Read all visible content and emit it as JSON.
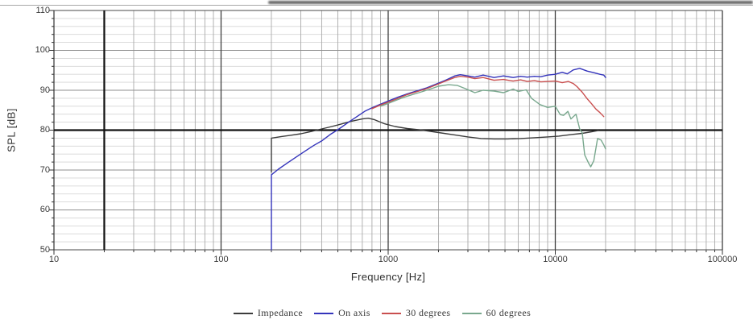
{
  "chart_data": {
    "type": "line",
    "title": "",
    "xlabel": "Frequency [Hz]",
    "ylabel": "SPL [dB]",
    "x_scale": "log",
    "xlim": [
      10,
      100000
    ],
    "ylim": [
      50,
      110
    ],
    "x_ticks": [
      10,
      100,
      1000,
      10000,
      100000
    ],
    "x_tick_labels": [
      "10",
      "100",
      "1000",
      "10000",
      "100000"
    ],
    "y_ticks": [
      50,
      60,
      70,
      80,
      90,
      100,
      110
    ],
    "y_minor_step": 2,
    "grid": true,
    "emphasized_gridlines": {
      "x": 20,
      "y": 80
    },
    "legend_position": "bottom-center",
    "series": [
      {
        "name": "Impedance",
        "color": "#3c3c3c",
        "points": [
          [
            200,
            69.5
          ],
          [
            200,
            78.0
          ],
          [
            230,
            78.4
          ],
          [
            260,
            78.7
          ],
          [
            300,
            79.1
          ],
          [
            350,
            79.7
          ],
          [
            400,
            80.3
          ],
          [
            450,
            80.8
          ],
          [
            500,
            81.3
          ],
          [
            600,
            82.2
          ],
          [
            700,
            82.8
          ],
          [
            760,
            83.0
          ],
          [
            830,
            82.6
          ],
          [
            950,
            81.6
          ],
          [
            1100,
            80.9
          ],
          [
            1300,
            80.4
          ],
          [
            1600,
            80.0
          ],
          [
            2000,
            79.4
          ],
          [
            2500,
            78.8
          ],
          [
            3000,
            78.3
          ],
          [
            3600,
            77.9
          ],
          [
            4300,
            77.8
          ],
          [
            5200,
            77.8
          ],
          [
            6200,
            77.9
          ],
          [
            7500,
            78.1
          ],
          [
            9000,
            78.3
          ],
          [
            10500,
            78.5
          ],
          [
            12500,
            78.9
          ],
          [
            14500,
            79.2
          ],
          [
            16500,
            79.6
          ],
          [
            18000,
            79.9
          ]
        ]
      },
      {
        "name": "On axis",
        "color": "#3434bb",
        "points": [
          [
            200,
            50.0
          ],
          [
            200,
            68.8
          ],
          [
            220,
            70.2
          ],
          [
            250,
            71.8
          ],
          [
            280,
            73.2
          ],
          [
            320,
            74.8
          ],
          [
            360,
            76.2
          ],
          [
            400,
            77.3
          ],
          [
            450,
            78.9
          ],
          [
            500,
            80.1
          ],
          [
            580,
            82.0
          ],
          [
            650,
            83.4
          ],
          [
            730,
            84.8
          ],
          [
            810,
            85.7
          ],
          [
            900,
            86.5
          ],
          [
            1000,
            87.3
          ],
          [
            1150,
            88.3
          ],
          [
            1300,
            89.1
          ],
          [
            1500,
            89.9
          ],
          [
            1700,
            90.6
          ],
          [
            2000,
            91.8
          ],
          [
            2200,
            92.5
          ],
          [
            2500,
            93.6
          ],
          [
            2700,
            93.9
          ],
          [
            3000,
            93.6
          ],
          [
            3300,
            93.3
          ],
          [
            3700,
            93.8
          ],
          [
            4300,
            93.2
          ],
          [
            4900,
            93.6
          ],
          [
            5600,
            93.2
          ],
          [
            6200,
            93.5
          ],
          [
            6800,
            93.3
          ],
          [
            7500,
            93.5
          ],
          [
            8200,
            93.4
          ],
          [
            9000,
            93.8
          ],
          [
            10000,
            94.0
          ],
          [
            11000,
            94.5
          ],
          [
            11800,
            94.1
          ],
          [
            12800,
            95.1
          ],
          [
            14000,
            95.5
          ],
          [
            15500,
            94.8
          ],
          [
            17000,
            94.4
          ],
          [
            18500,
            94.0
          ],
          [
            19500,
            93.8
          ],
          [
            20000,
            93.2
          ]
        ]
      },
      {
        "name": "30 degrees",
        "color": "#c94f4f",
        "points": [
          [
            800,
            85.4
          ],
          [
            900,
            86.3
          ],
          [
            1000,
            87.0
          ],
          [
            1150,
            88.0
          ],
          [
            1300,
            88.9
          ],
          [
            1500,
            89.7
          ],
          [
            1700,
            90.4
          ],
          [
            2000,
            91.6
          ],
          [
            2200,
            92.3
          ],
          [
            2500,
            93.2
          ],
          [
            2700,
            93.5
          ],
          [
            3000,
            93.3
          ],
          [
            3300,
            92.9
          ],
          [
            3700,
            93.2
          ],
          [
            4300,
            92.5
          ],
          [
            4900,
            92.7
          ],
          [
            5600,
            92.3
          ],
          [
            6200,
            92.6
          ],
          [
            6800,
            92.2
          ],
          [
            7500,
            92.4
          ],
          [
            8200,
            92.1
          ],
          [
            9000,
            92.2
          ],
          [
            10000,
            92.3
          ],
          [
            11000,
            91.9
          ],
          [
            12000,
            92.2
          ],
          [
            12800,
            91.7
          ],
          [
            13500,
            90.9
          ],
          [
            14500,
            89.5
          ],
          [
            15500,
            87.9
          ],
          [
            16500,
            86.6
          ],
          [
            17500,
            85.3
          ],
          [
            18500,
            84.4
          ],
          [
            19500,
            83.4
          ]
        ]
      },
      {
        "name": "60 degrees",
        "color": "#79a88e",
        "points": [
          [
            900,
            86.0
          ],
          [
            1000,
            86.7
          ],
          [
            1150,
            87.7
          ],
          [
            1300,
            88.5
          ],
          [
            1500,
            89.3
          ],
          [
            1700,
            90.0
          ],
          [
            2000,
            91.0
          ],
          [
            2300,
            91.4
          ],
          [
            2600,
            91.2
          ],
          [
            2900,
            90.4
          ],
          [
            3300,
            89.4
          ],
          [
            3700,
            90.0
          ],
          [
            4300,
            89.8
          ],
          [
            4900,
            89.4
          ],
          [
            5600,
            90.3
          ],
          [
            6000,
            89.7
          ],
          [
            6700,
            90.1
          ],
          [
            7200,
            88.0
          ],
          [
            8100,
            86.4
          ],
          [
            9000,
            85.7
          ],
          [
            10000,
            86.0
          ],
          [
            10700,
            83.9
          ],
          [
            11200,
            83.7
          ],
          [
            11900,
            84.7
          ],
          [
            12400,
            82.8
          ],
          [
            13300,
            84.0
          ],
          [
            14000,
            80.3
          ],
          [
            14500,
            79.3
          ],
          [
            15000,
            73.8
          ],
          [
            15800,
            71.8
          ],
          [
            16300,
            70.8
          ],
          [
            17000,
            72.3
          ],
          [
            17900,
            77.9
          ],
          [
            18800,
            77.5
          ],
          [
            19500,
            76.3
          ],
          [
            20000,
            75.3
          ]
        ]
      }
    ]
  }
}
